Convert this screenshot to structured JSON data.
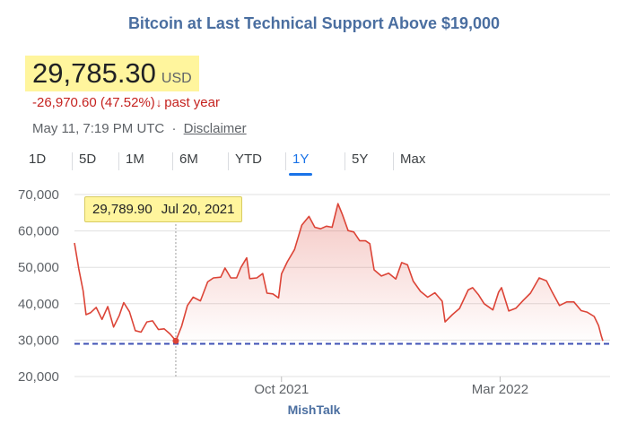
{
  "title": "Bitcoin at Last Technical Support Above $19,000",
  "price": {
    "value": "29,785.30",
    "currency": "USD",
    "highlight_color": "#fff59d"
  },
  "change": {
    "amount": "-26,970.60",
    "percent": "(47.52%)",
    "arrow": "↓",
    "period": "past year",
    "color": "#c5221f"
  },
  "meta": {
    "timestamp": "May 11, 7:19 PM UTC",
    "separator": "·",
    "disclaimer": "Disclaimer"
  },
  "tabs": [
    {
      "label": "1D",
      "active": false
    },
    {
      "label": "5D",
      "active": false
    },
    {
      "label": "1M",
      "active": false
    },
    {
      "label": "6M",
      "active": false
    },
    {
      "label": "YTD",
      "active": false
    },
    {
      "label": "1Y",
      "active": true
    },
    {
      "label": "5Y",
      "active": false
    },
    {
      "label": "Max",
      "active": false
    }
  ],
  "tooltip": {
    "value": "29,789.90",
    "date": "Jul 20, 2021"
  },
  "watermark": "MishTalk",
  "chart_data": {
    "type": "line",
    "title": "Bitcoin at Last Technical Support Above $19,000",
    "x_range": [
      "2021-05-11",
      "2022-05-11"
    ],
    "x_ticks": [
      {
        "label": "Oct 2021",
        "date": "2021-10-01"
      },
      {
        "label": "Mar 2022",
        "date": "2022-03-01"
      }
    ],
    "y_ticks": [
      20000,
      30000,
      40000,
      50000,
      60000,
      70000
    ],
    "y_tick_labels": [
      "20,000",
      "30,000",
      "40,000",
      "50,000",
      "60,000",
      "70,000"
    ],
    "ylim": [
      20000,
      70000
    ],
    "grid": "horizontal",
    "line_color": "#dc4437",
    "fill_color": "#dc4437",
    "support_line": {
      "value": 29000,
      "color": "#3f51b5",
      "style": "dashed"
    },
    "highlight_point": {
      "date": "2021-07-20",
      "value": 29789.9
    },
    "series": [
      {
        "points": [
          [
            "2021-05-11",
            56700
          ],
          [
            "2021-05-14",
            49600
          ],
          [
            "2021-05-17",
            43500
          ],
          [
            "2021-05-19",
            37000
          ],
          [
            "2021-05-22",
            37500
          ],
          [
            "2021-05-26",
            39000
          ],
          [
            "2021-05-30",
            35700
          ],
          [
            "2021-06-03",
            39200
          ],
          [
            "2021-06-07",
            33600
          ],
          [
            "2021-06-11",
            36800
          ],
          [
            "2021-06-14",
            40300
          ],
          [
            "2021-06-18",
            37800
          ],
          [
            "2021-06-22",
            32600
          ],
          [
            "2021-06-26",
            32200
          ],
          [
            "2021-06-30",
            35000
          ],
          [
            "2021-07-04",
            35300
          ],
          [
            "2021-07-08",
            32900
          ],
          [
            "2021-07-12",
            33100
          ],
          [
            "2021-07-16",
            31700
          ],
          [
            "2021-07-20",
            29800
          ],
          [
            "2021-07-24",
            33800
          ],
          [
            "2021-07-28",
            39500
          ],
          [
            "2021-08-01",
            41800
          ],
          [
            "2021-08-06",
            40800
          ],
          [
            "2021-08-11",
            46000
          ],
          [
            "2021-08-15",
            47100
          ],
          [
            "2021-08-20",
            47300
          ],
          [
            "2021-08-23",
            49800
          ],
          [
            "2021-08-27",
            47100
          ],
          [
            "2021-08-31",
            47100
          ],
          [
            "2021-09-03",
            50000
          ],
          [
            "2021-09-07",
            52600
          ],
          [
            "2021-09-09",
            46900
          ],
          [
            "2021-09-14",
            47100
          ],
          [
            "2021-09-18",
            48300
          ],
          [
            "2021-09-21",
            42900
          ],
          [
            "2021-09-25",
            42700
          ],
          [
            "2021-09-29",
            41600
          ],
          [
            "2021-10-01",
            48200
          ],
          [
            "2021-10-05",
            51500
          ],
          [
            "2021-10-10",
            54900
          ],
          [
            "2021-10-15",
            61600
          ],
          [
            "2021-10-20",
            64000
          ],
          [
            "2021-10-24",
            61000
          ],
          [
            "2021-10-28",
            60600
          ],
          [
            "2021-11-01",
            61300
          ],
          [
            "2021-11-05",
            61000
          ],
          [
            "2021-11-09",
            67500
          ],
          [
            "2021-11-12",
            64600
          ],
          [
            "2021-11-16",
            60100
          ],
          [
            "2021-11-20",
            59700
          ],
          [
            "2021-11-24",
            57300
          ],
          [
            "2021-11-28",
            57300
          ],
          [
            "2021-12-01",
            56500
          ],
          [
            "2021-12-04",
            49300
          ],
          [
            "2021-12-09",
            47600
          ],
          [
            "2021-12-14",
            48400
          ],
          [
            "2021-12-19",
            46800
          ],
          [
            "2021-12-23",
            51300
          ],
          [
            "2021-12-27",
            50700
          ],
          [
            "2021-12-31",
            46200
          ],
          [
            "2022-01-05",
            43400
          ],
          [
            "2022-01-10",
            41800
          ],
          [
            "2022-01-15",
            43000
          ],
          [
            "2022-01-20",
            40700
          ],
          [
            "2022-01-22",
            35000
          ],
          [
            "2022-01-27",
            37000
          ],
          [
            "2022-02-01",
            38700
          ],
          [
            "2022-02-07",
            43800
          ],
          [
            "2022-02-10",
            44400
          ],
          [
            "2022-02-14",
            42500
          ],
          [
            "2022-02-18",
            40000
          ],
          [
            "2022-02-24",
            38300
          ],
          [
            "2022-02-28",
            43200
          ],
          [
            "2022-03-02",
            44400
          ],
          [
            "2022-03-07",
            38000
          ],
          [
            "2022-03-12",
            38800
          ],
          [
            "2022-03-17",
            40900
          ],
          [
            "2022-03-22",
            42900
          ],
          [
            "2022-03-28",
            47100
          ],
          [
            "2022-04-02",
            46300
          ],
          [
            "2022-04-06",
            43200
          ],
          [
            "2022-04-11",
            39500
          ],
          [
            "2022-04-16",
            40500
          ],
          [
            "2022-04-21",
            40500
          ],
          [
            "2022-04-26",
            38100
          ],
          [
            "2022-04-30",
            37700
          ],
          [
            "2022-05-05",
            36500
          ],
          [
            "2022-05-08",
            34000
          ],
          [
            "2022-05-10",
            31000
          ],
          [
            "2022-05-11",
            29785
          ]
        ]
      }
    ]
  }
}
